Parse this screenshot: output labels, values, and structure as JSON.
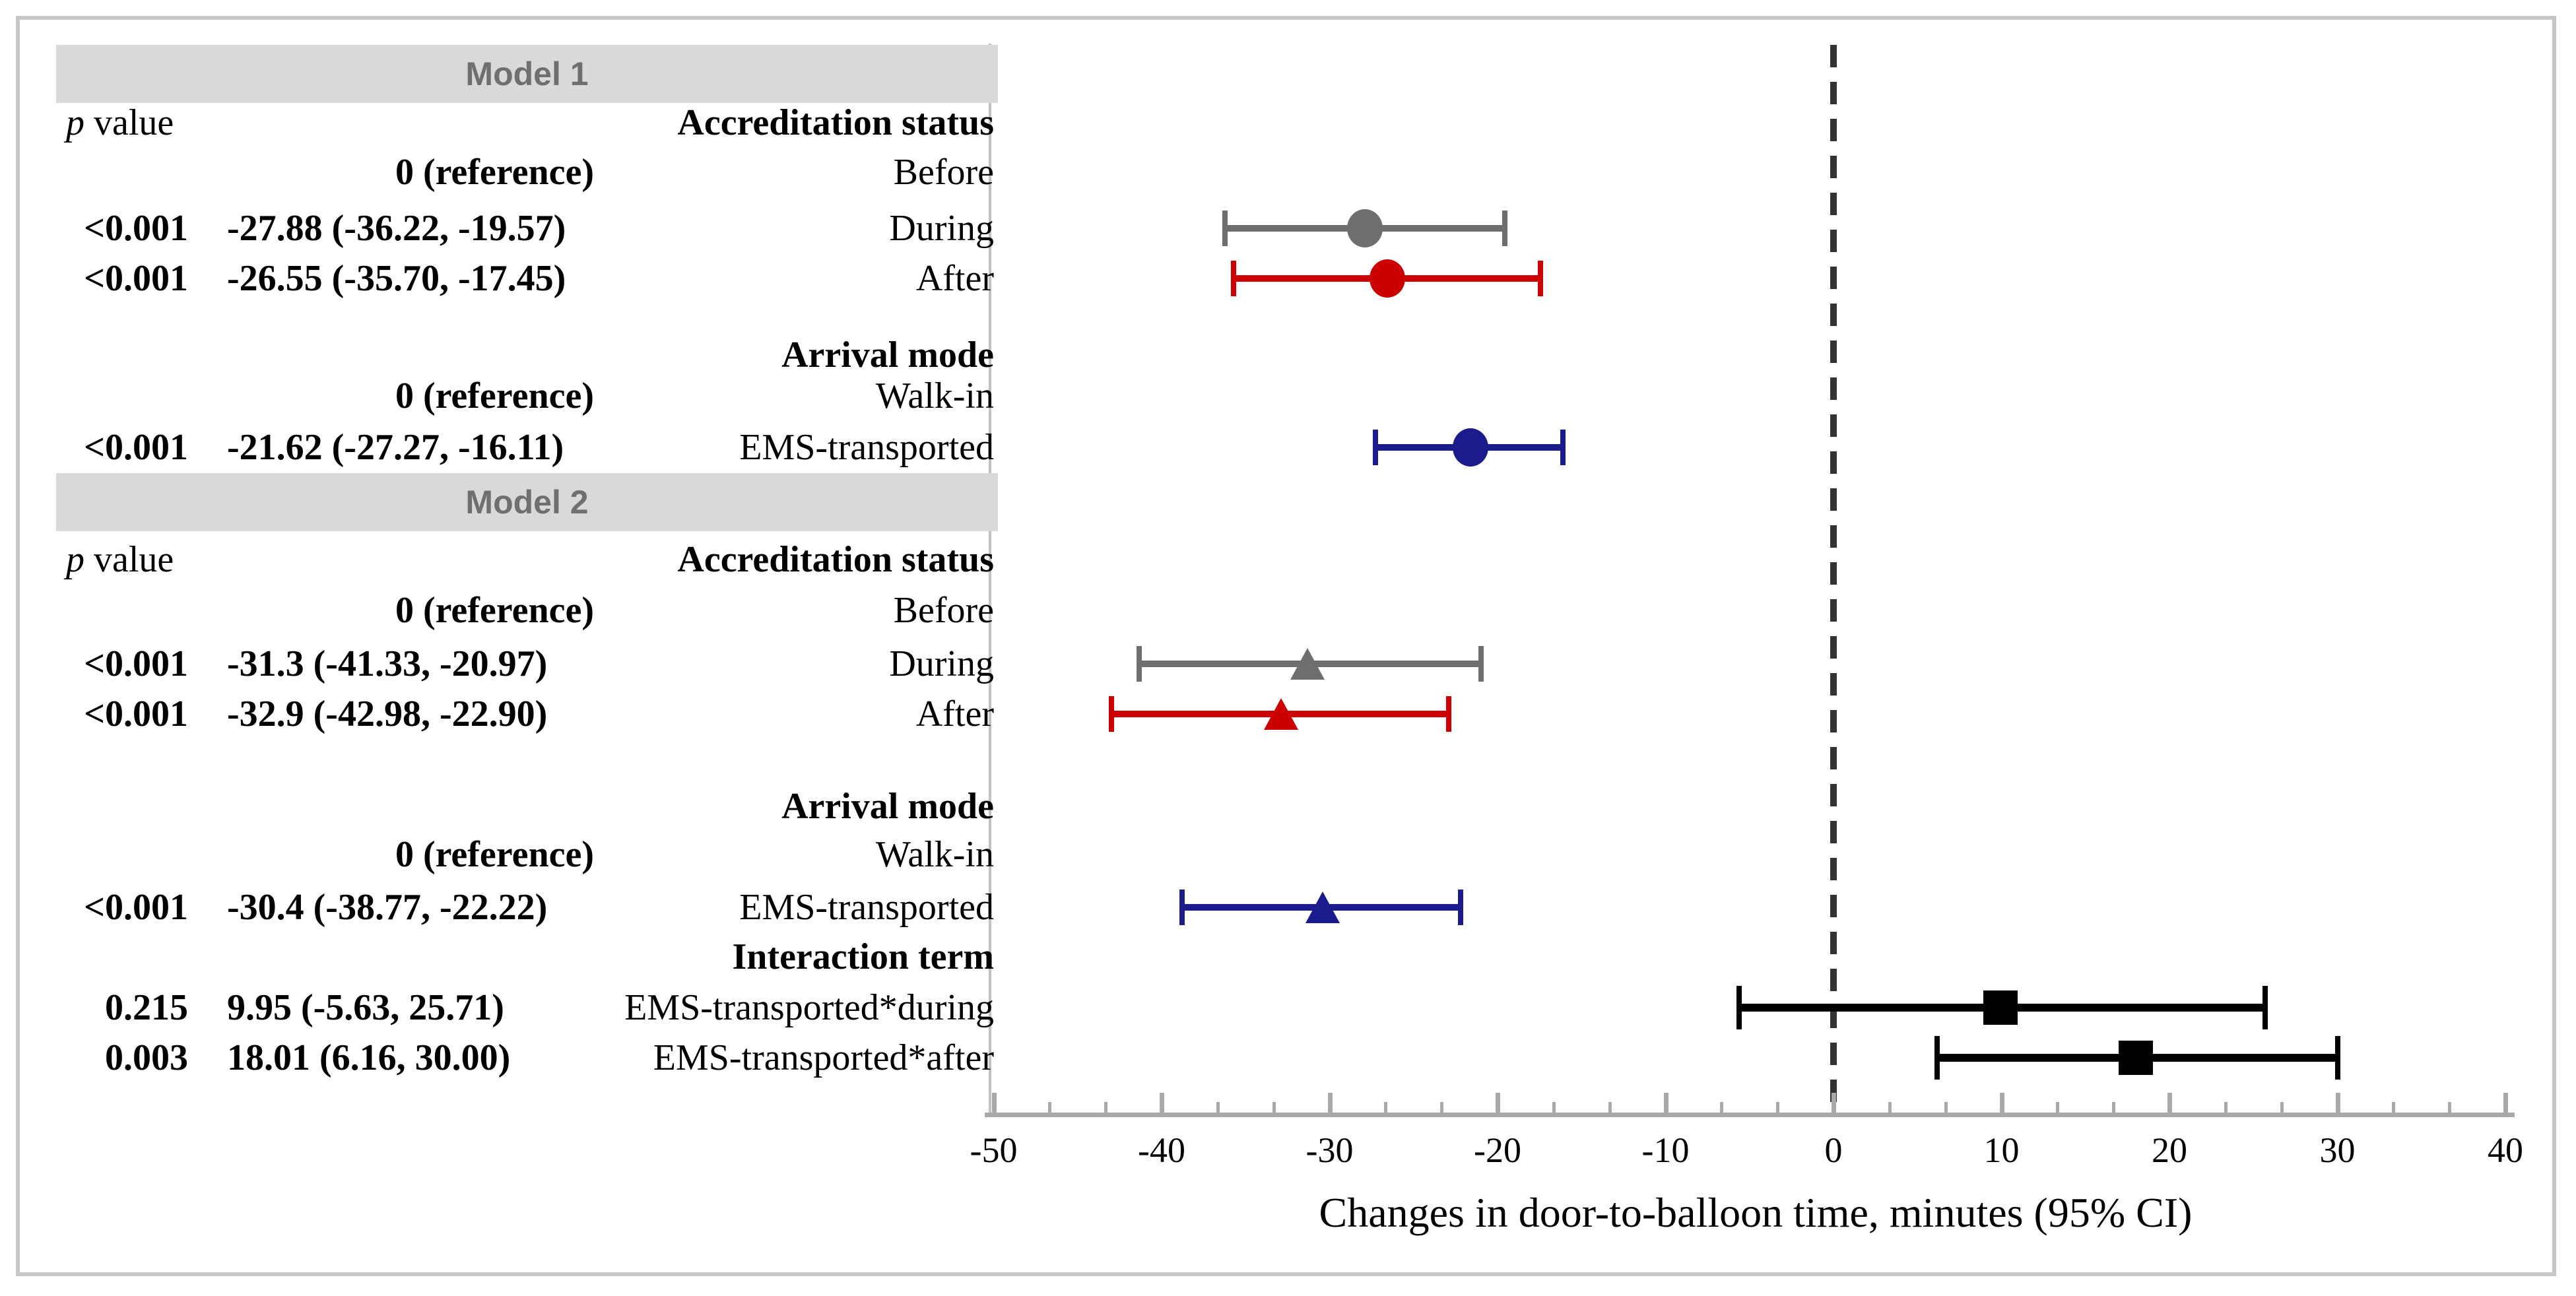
{
  "colors": {
    "frame_border": "#c6c6c6",
    "bar_background": "#d9d9d9",
    "bar_text": "#6f6f6f",
    "axis_line": "#a9a9a9",
    "spine": "#c2c2c2",
    "zero_line": "#333333",
    "gray": "#6e6e6e",
    "red": "#cc0000",
    "blue": "#1b1b8e",
    "black": "#000000"
  },
  "chart_data": {
    "type": "forest",
    "xlabel": "Changes in door-to-balloon time, minutes (95% CI)",
    "xlim": [
      -50,
      40
    ],
    "x_major_ticks": [
      -50,
      -40,
      -30,
      -20,
      -10,
      0,
      10,
      20,
      30,
      40
    ],
    "minor_ticks_per_major_interval": 2,
    "zero_reference": 0,
    "p_value_header": {
      "italic": "p",
      "rest": " value"
    },
    "rows": [
      {
        "kind": "model-header",
        "text": "Model 1"
      },
      {
        "kind": "column-header",
        "group": "Accreditation status"
      },
      {
        "kind": "reference",
        "label": "Before",
        "estimate": "0 (reference)"
      },
      {
        "kind": "data",
        "label": "During",
        "p": "<0.001",
        "estimate": "-27.88 (-36.22, -19.57)",
        "mean": -27.88,
        "lo": -36.22,
        "hi": -19.57,
        "marker": "circle",
        "color": "gray"
      },
      {
        "kind": "data",
        "label": "After",
        "p": "<0.001",
        "estimate": "-26.55 (-35.70, -17.45)",
        "mean": -26.55,
        "lo": -35.7,
        "hi": -17.45,
        "marker": "circle",
        "color": "red"
      },
      {
        "kind": "group-header",
        "group": "Arrival mode"
      },
      {
        "kind": "reference",
        "label": "Walk-in",
        "estimate": "0 (reference)"
      },
      {
        "kind": "data",
        "label": "EMS-transported",
        "p": "<0.001",
        "estimate": "-21.62 (-27.27, -16.11)",
        "mean": -21.62,
        "lo": -27.27,
        "hi": -16.11,
        "marker": "circle",
        "color": "blue"
      },
      {
        "kind": "model-header",
        "text": "Model 2"
      },
      {
        "kind": "column-header",
        "group": "Accreditation status"
      },
      {
        "kind": "reference",
        "label": "Before",
        "estimate": "0 (reference)"
      },
      {
        "kind": "data",
        "label": "During",
        "p": "<0.001",
        "estimate": "-31.3 (-41.33, -20.97)",
        "mean": -31.3,
        "lo": -41.33,
        "hi": -20.97,
        "marker": "triangle",
        "color": "gray"
      },
      {
        "kind": "data",
        "label": "After",
        "p": "<0.001",
        "estimate": "-32.9 (-42.98, -22.90)",
        "mean": -32.9,
        "lo": -42.98,
        "hi": -22.9,
        "marker": "triangle",
        "color": "red"
      },
      {
        "kind": "group-header",
        "group": "Arrival mode"
      },
      {
        "kind": "reference",
        "label": "Walk-in",
        "estimate": "0 (reference)"
      },
      {
        "kind": "data",
        "label": "EMS-transported",
        "p": "<0.001",
        "estimate": "-30.4 (-38.77, -22.22)",
        "mean": -30.4,
        "lo": -38.77,
        "hi": -22.22,
        "marker": "triangle",
        "color": "blue"
      },
      {
        "kind": "group-header",
        "group": "Interaction term"
      },
      {
        "kind": "data",
        "label": "EMS-transported*during",
        "p": "0.215",
        "estimate": "9.95 (-5.63, 25.71)",
        "mean": 9.95,
        "lo": -5.63,
        "hi": 25.71,
        "marker": "square",
        "color": "black"
      },
      {
        "kind": "data",
        "label": "EMS-transported*after",
        "p": "0.003",
        "estimate": "18.01 (6.16, 30.00)",
        "mean": 18.01,
        "lo": 6.16,
        "hi": 30.0,
        "marker": "square",
        "color": "black"
      }
    ]
  }
}
